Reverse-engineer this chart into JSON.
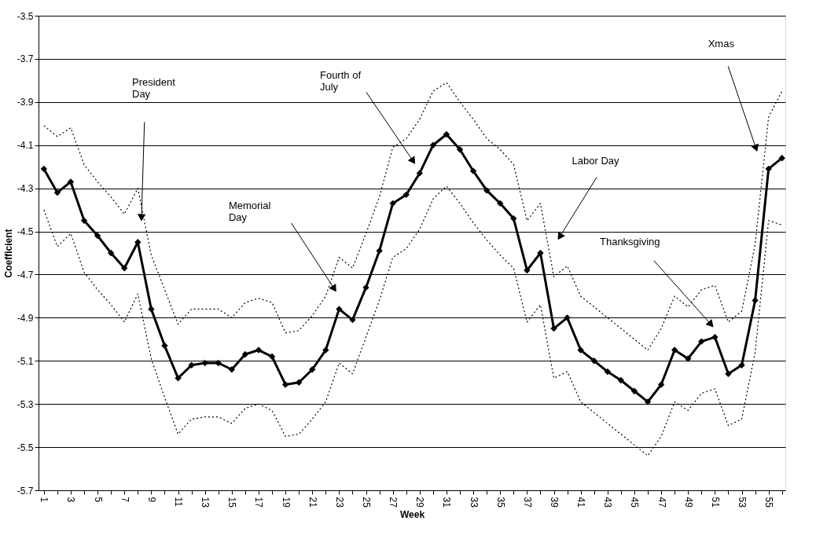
{
  "chart_data": {
    "type": "line",
    "xlabel": "Week",
    "ylabel": "Coefficient",
    "x": [
      1,
      2,
      3,
      4,
      5,
      6,
      7,
      8,
      9,
      10,
      11,
      12,
      13,
      14,
      15,
      16,
      17,
      18,
      19,
      20,
      21,
      22,
      23,
      24,
      25,
      26,
      27,
      28,
      29,
      30,
      31,
      32,
      33,
      34,
      35,
      36,
      37,
      38,
      39,
      40,
      41,
      42,
      43,
      44,
      45,
      46,
      47,
      48,
      49,
      50,
      51,
      52,
      53,
      54,
      55,
      56
    ],
    "series": [
      {
        "color": "#000000",
        "marker": "diamond",
        "line_style": "solid",
        "values": [
          -4.21,
          -4.32,
          -4.27,
          -4.45,
          -4.52,
          -4.6,
          -4.67,
          -4.55,
          -4.86,
          -5.03,
          -5.18,
          -5.12,
          -5.11,
          -5.11,
          -5.14,
          -5.07,
          -5.05,
          -5.08,
          -5.21,
          -5.2,
          -5.14,
          -5.05,
          -4.86,
          -4.91,
          -4.76,
          -4.59,
          -4.37,
          -4.33,
          -4.23,
          -4.1,
          -4.05,
          -4.12,
          -4.22,
          -4.31,
          -4.37,
          -4.44,
          -4.68,
          -4.6,
          -4.95,
          -4.9,
          -5.05,
          -5.1,
          -5.15,
          -5.19,
          -5.24,
          -5.29,
          -5.21,
          -5.05,
          -5.09,
          -5.01,
          -4.99,
          -5.16,
          -5.12,
          -4.82,
          -4.21,
          -4.16
        ]
      },
      {
        "color": "#000000",
        "marker": "none",
        "line_style": "dotted",
        "values": [
          -4.01,
          -4.06,
          -4.02,
          -4.19,
          -4.27,
          -4.34,
          -4.42,
          -4.3,
          -4.61,
          -4.77,
          -4.93,
          -4.86,
          -4.86,
          -4.86,
          -4.9,
          -4.83,
          -4.81,
          -4.83,
          -4.97,
          -4.96,
          -4.89,
          -4.8,
          -4.62,
          -4.67,
          -4.51,
          -4.34,
          -4.11,
          -4.07,
          -3.98,
          -3.85,
          -3.81,
          -3.9,
          -3.98,
          -4.07,
          -4.12,
          -4.19,
          -4.45,
          -4.37,
          -4.71,
          -4.66,
          -4.8,
          -4.85,
          -4.9,
          -4.95,
          -5.0,
          -5.05,
          -4.95,
          -4.8,
          -4.85,
          -4.77,
          -4.75,
          -4.92,
          -4.87,
          -4.56,
          -3.97,
          -3.85
        ]
      },
      {
        "color": "#000000",
        "marker": "none",
        "line_style": "dotted",
        "values": [
          -4.4,
          -4.57,
          -4.51,
          -4.69,
          -4.77,
          -4.84,
          -4.92,
          -4.79,
          -5.09,
          -5.27,
          -5.44,
          -5.37,
          -5.36,
          -5.36,
          -5.39,
          -5.32,
          -5.3,
          -5.33,
          -5.45,
          -5.44,
          -5.37,
          -5.29,
          -5.11,
          -5.16,
          -4.99,
          -4.82,
          -4.62,
          -4.58,
          -4.49,
          -4.35,
          -4.29,
          -4.37,
          -4.46,
          -4.54,
          -4.61,
          -4.67,
          -4.92,
          -4.84,
          -5.18,
          -5.15,
          -5.29,
          -5.34,
          -5.39,
          -5.44,
          -5.49,
          -5.54,
          -5.45,
          -5.29,
          -5.33,
          -5.25,
          -5.23,
          -5.4,
          -5.37,
          -5.06,
          -4.45,
          -4.47
        ]
      }
    ],
    "xlim": [
      0.6,
      56.25
    ],
    "xticks": [
      1,
      {
        "value": 2,
        "label": null
      },
      3,
      {
        "value": 4,
        "label": null
      },
      5,
      {
        "value": 6,
        "label": null
      },
      7,
      {
        "value": 8,
        "label": null
      },
      9,
      {
        "value": 10,
        "label": null
      },
      11,
      {
        "value": 12,
        "label": null
      },
      13,
      {
        "value": 14,
        "label": null
      },
      15,
      {
        "value": 16,
        "label": null
      },
      17,
      {
        "value": 18,
        "label": null
      },
      19,
      {
        "value": 20,
        "label": null
      },
      21,
      {
        "value": 22,
        "label": null
      },
      23,
      {
        "value": 24,
        "label": null
      },
      25,
      {
        "value": 26,
        "label": null
      },
      27,
      {
        "value": 28,
        "label": null
      },
      29,
      {
        "value": 30,
        "label": null
      },
      31,
      {
        "value": 32,
        "label": null
      },
      33,
      {
        "value": 34,
        "label": null
      },
      35,
      {
        "value": 36,
        "label": null
      },
      37,
      {
        "value": 38,
        "label": null
      },
      39,
      {
        "value": 40,
        "label": null
      },
      41,
      {
        "value": 42,
        "label": null
      },
      43,
      {
        "value": 44,
        "label": null
      },
      45,
      {
        "value": 46,
        "label": null
      },
      47,
      {
        "value": 48,
        "label": null
      },
      49,
      {
        "value": 50,
        "label": null
      },
      51,
      {
        "value": 52,
        "label": null
      },
      53,
      {
        "value": 54,
        "label": null
      },
      55,
      {
        "value": 56,
        "label": null
      }
    ],
    "ylim": [
      -5.7,
      -3.5
    ],
    "yticks": [
      -5.7,
      -5.5,
      -5.3,
      -5.1,
      -4.9,
      -4.7,
      -4.5,
      -4.3,
      -4.1,
      -3.9,
      -3.7,
      -3.5
    ],
    "grid": "y",
    "annotations": [
      "President\nDay",
      "Memorial\nDay",
      "Fourth of\nJuly",
      "Labor Day",
      "Thanksgiving",
      "Xmas"
    ]
  }
}
